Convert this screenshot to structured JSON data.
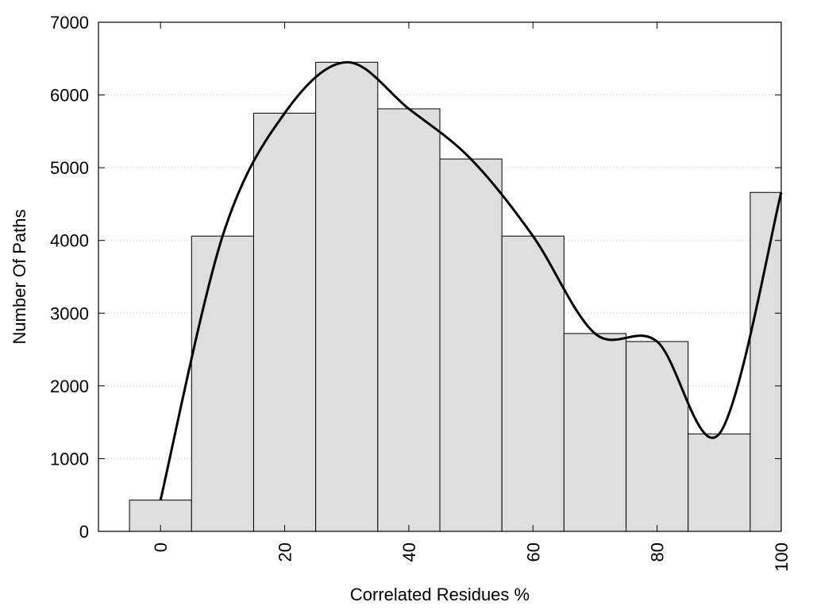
{
  "chart_data": {
    "type": "bar",
    "xlabel": "Correlated Residues %",
    "ylabel": "Number Of Paths",
    "xlim": [
      -10,
      100
    ],
    "ylim": [
      0,
      7000
    ],
    "x_ticks": [
      0,
      20,
      40,
      60,
      80,
      100
    ],
    "y_ticks": [
      0,
      1000,
      2000,
      3000,
      4000,
      5000,
      6000,
      7000
    ],
    "bar_width": 10,
    "grid": "horizontal-dotted",
    "bar_color": "#dedede",
    "curve_color": "#000000",
    "categories": [
      0,
      10,
      20,
      30,
      40,
      50,
      60,
      70,
      80,
      90,
      100
    ],
    "values": [
      430,
      4060,
      5750,
      6450,
      5810,
      5120,
      4060,
      2720,
      2610,
      1340,
      4660
    ],
    "curve": [
      [
        0,
        430
      ],
      [
        10,
        4060
      ],
      [
        20,
        5750
      ],
      [
        30,
        6450
      ],
      [
        40,
        5810
      ],
      [
        50,
        5120
      ],
      [
        60,
        4060
      ],
      [
        70,
        2720
      ],
      [
        80,
        2610
      ],
      [
        90,
        1340
      ],
      [
        100,
        4660
      ]
    ]
  }
}
